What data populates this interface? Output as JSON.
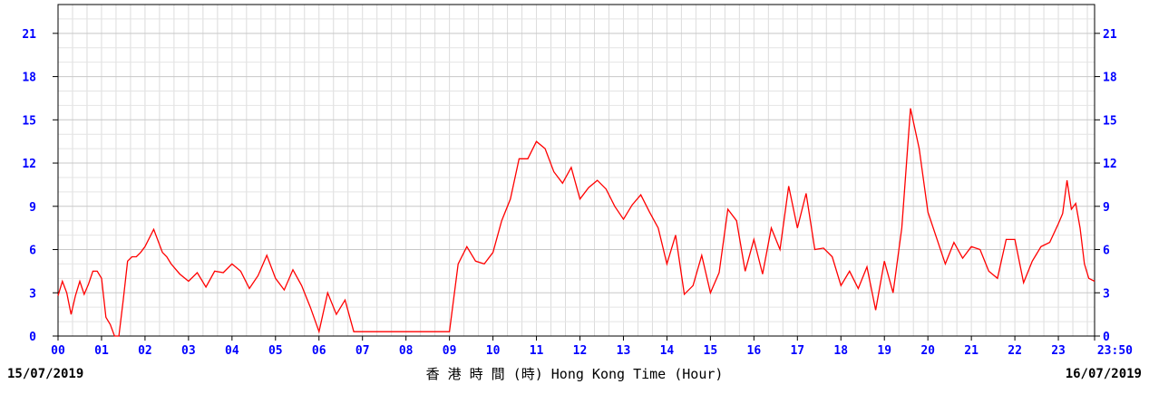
{
  "chart_data": {
    "type": "line",
    "x_unit": "hour",
    "xlim": [
      0,
      23.833
    ],
    "ylim": [
      0,
      23
    ],
    "y_ticks": [
      0,
      3,
      6,
      9,
      12,
      15,
      18,
      21
    ],
    "x_tick_labels": [
      "00",
      "01",
      "02",
      "03",
      "04",
      "05",
      "06",
      "07",
      "08",
      "09",
      "10",
      "11",
      "12",
      "13",
      "14",
      "15",
      "16",
      "17",
      "18",
      "19",
      "20",
      "21",
      "22",
      "23",
      "23:50"
    ],
    "x_tick_values": [
      0,
      1,
      2,
      3,
      4,
      5,
      6,
      7,
      8,
      9,
      10,
      11,
      12,
      13,
      14,
      15,
      16,
      17,
      18,
      19,
      20,
      21,
      22,
      23,
      23.833
    ],
    "grid": true,
    "line_color": "#ff0000",
    "tick_color": "#0000ff",
    "xlabel": "香 港 時 間 (時) Hong Kong Time (Hour)",
    "date_start": "15/07/2019",
    "date_end": "16/07/2019",
    "series": [
      {
        "x": [
          0,
          0.1,
          0.2,
          0.3,
          0.4,
          0.5,
          0.6,
          0.7,
          0.8,
          0.9,
          1.0,
          1.1,
          1.2,
          1.3,
          1.4,
          1.5,
          1.6,
          1.7,
          1.8,
          1.9,
          2.0,
          2.2,
          2.4,
          2.5,
          2.6,
          2.8,
          3.0,
          3.2,
          3.4,
          3.6,
          3.8,
          4.0,
          4.2,
          4.4,
          4.6,
          4.8,
          5.0,
          5.2,
          5.4,
          5.6,
          5.8,
          6.0,
          6.2,
          6.4,
          6.6,
          6.8,
          7.0,
          7.4,
          7.8,
          8.0,
          8.2,
          8.5,
          8.8,
          9.0,
          9.2,
          9.4,
          9.6,
          9.8,
          10.0,
          10.2,
          10.4,
          10.6,
          10.8,
          11.0,
          11.2,
          11.4,
          11.6,
          11.8,
          12.0,
          12.2,
          12.4,
          12.6,
          12.8,
          13.0,
          13.2,
          13.4,
          13.6,
          13.8,
          14.0,
          14.2,
          14.4,
          14.6,
          14.8,
          15.0,
          15.2,
          15.4,
          15.6,
          15.8,
          16.0,
          16.2,
          16.4,
          16.6,
          16.8,
          17.0,
          17.2,
          17.4,
          17.6,
          17.8,
          18.0,
          18.2,
          18.4,
          18.6,
          18.8,
          19.0,
          19.2,
          19.4,
          19.6,
          19.8,
          20.0,
          20.2,
          20.4,
          20.6,
          20.8,
          21.0,
          21.2,
          21.4,
          21.6,
          21.8,
          22.0,
          22.2,
          22.4,
          22.6,
          22.8,
          23.0,
          23.1,
          23.2,
          23.3,
          23.4,
          23.5,
          23.6,
          23.7,
          23.833
        ],
        "y": [
          2.8,
          3.8,
          3.0,
          1.5,
          2.8,
          3.8,
          2.9,
          3.6,
          4.5,
          4.5,
          4.0,
          1.3,
          0.8,
          0.0,
          0.0,
          2.5,
          5.2,
          5.5,
          5.5,
          5.8,
          6.2,
          7.4,
          5.8,
          5.5,
          5.0,
          4.3,
          3.8,
          4.4,
          3.4,
          4.5,
          4.4,
          5.0,
          4.5,
          3.3,
          4.2,
          5.6,
          4.0,
          3.2,
          4.6,
          3.5,
          2.0,
          0.3,
          3.0,
          1.5,
          2.5,
          0.3,
          0.3,
          0.3,
          0.3,
          0.3,
          0.3,
          0.3,
          0.3,
          0.3,
          5.0,
          6.2,
          5.2,
          5.0,
          5.8,
          8.0,
          9.5,
          12.3,
          12.3,
          13.5,
          13.0,
          11.4,
          10.6,
          11.7,
          9.5,
          10.3,
          10.8,
          10.2,
          9.0,
          8.1,
          9.1,
          9.8,
          8.6,
          7.5,
          5.0,
          7.0,
          2.9,
          3.5,
          5.6,
          3.0,
          4.4,
          8.8,
          8.0,
          4.5,
          6.7,
          4.3,
          7.5,
          6.0,
          10.4,
          7.5,
          9.9,
          6.0,
          6.1,
          5.5,
          3.5,
          4.5,
          3.3,
          4.8,
          1.8,
          5.2,
          3.0,
          7.5,
          15.8,
          13.0,
          8.6,
          6.8,
          5.0,
          6.5,
          5.4,
          6.2,
          6.0,
          4.5,
          4.0,
          6.7,
          6.7,
          3.7,
          5.2,
          6.2,
          6.5,
          7.8,
          8.5,
          10.8,
          8.8,
          9.2,
          7.5,
          5.0,
          4.0,
          3.8
        ]
      }
    ]
  }
}
